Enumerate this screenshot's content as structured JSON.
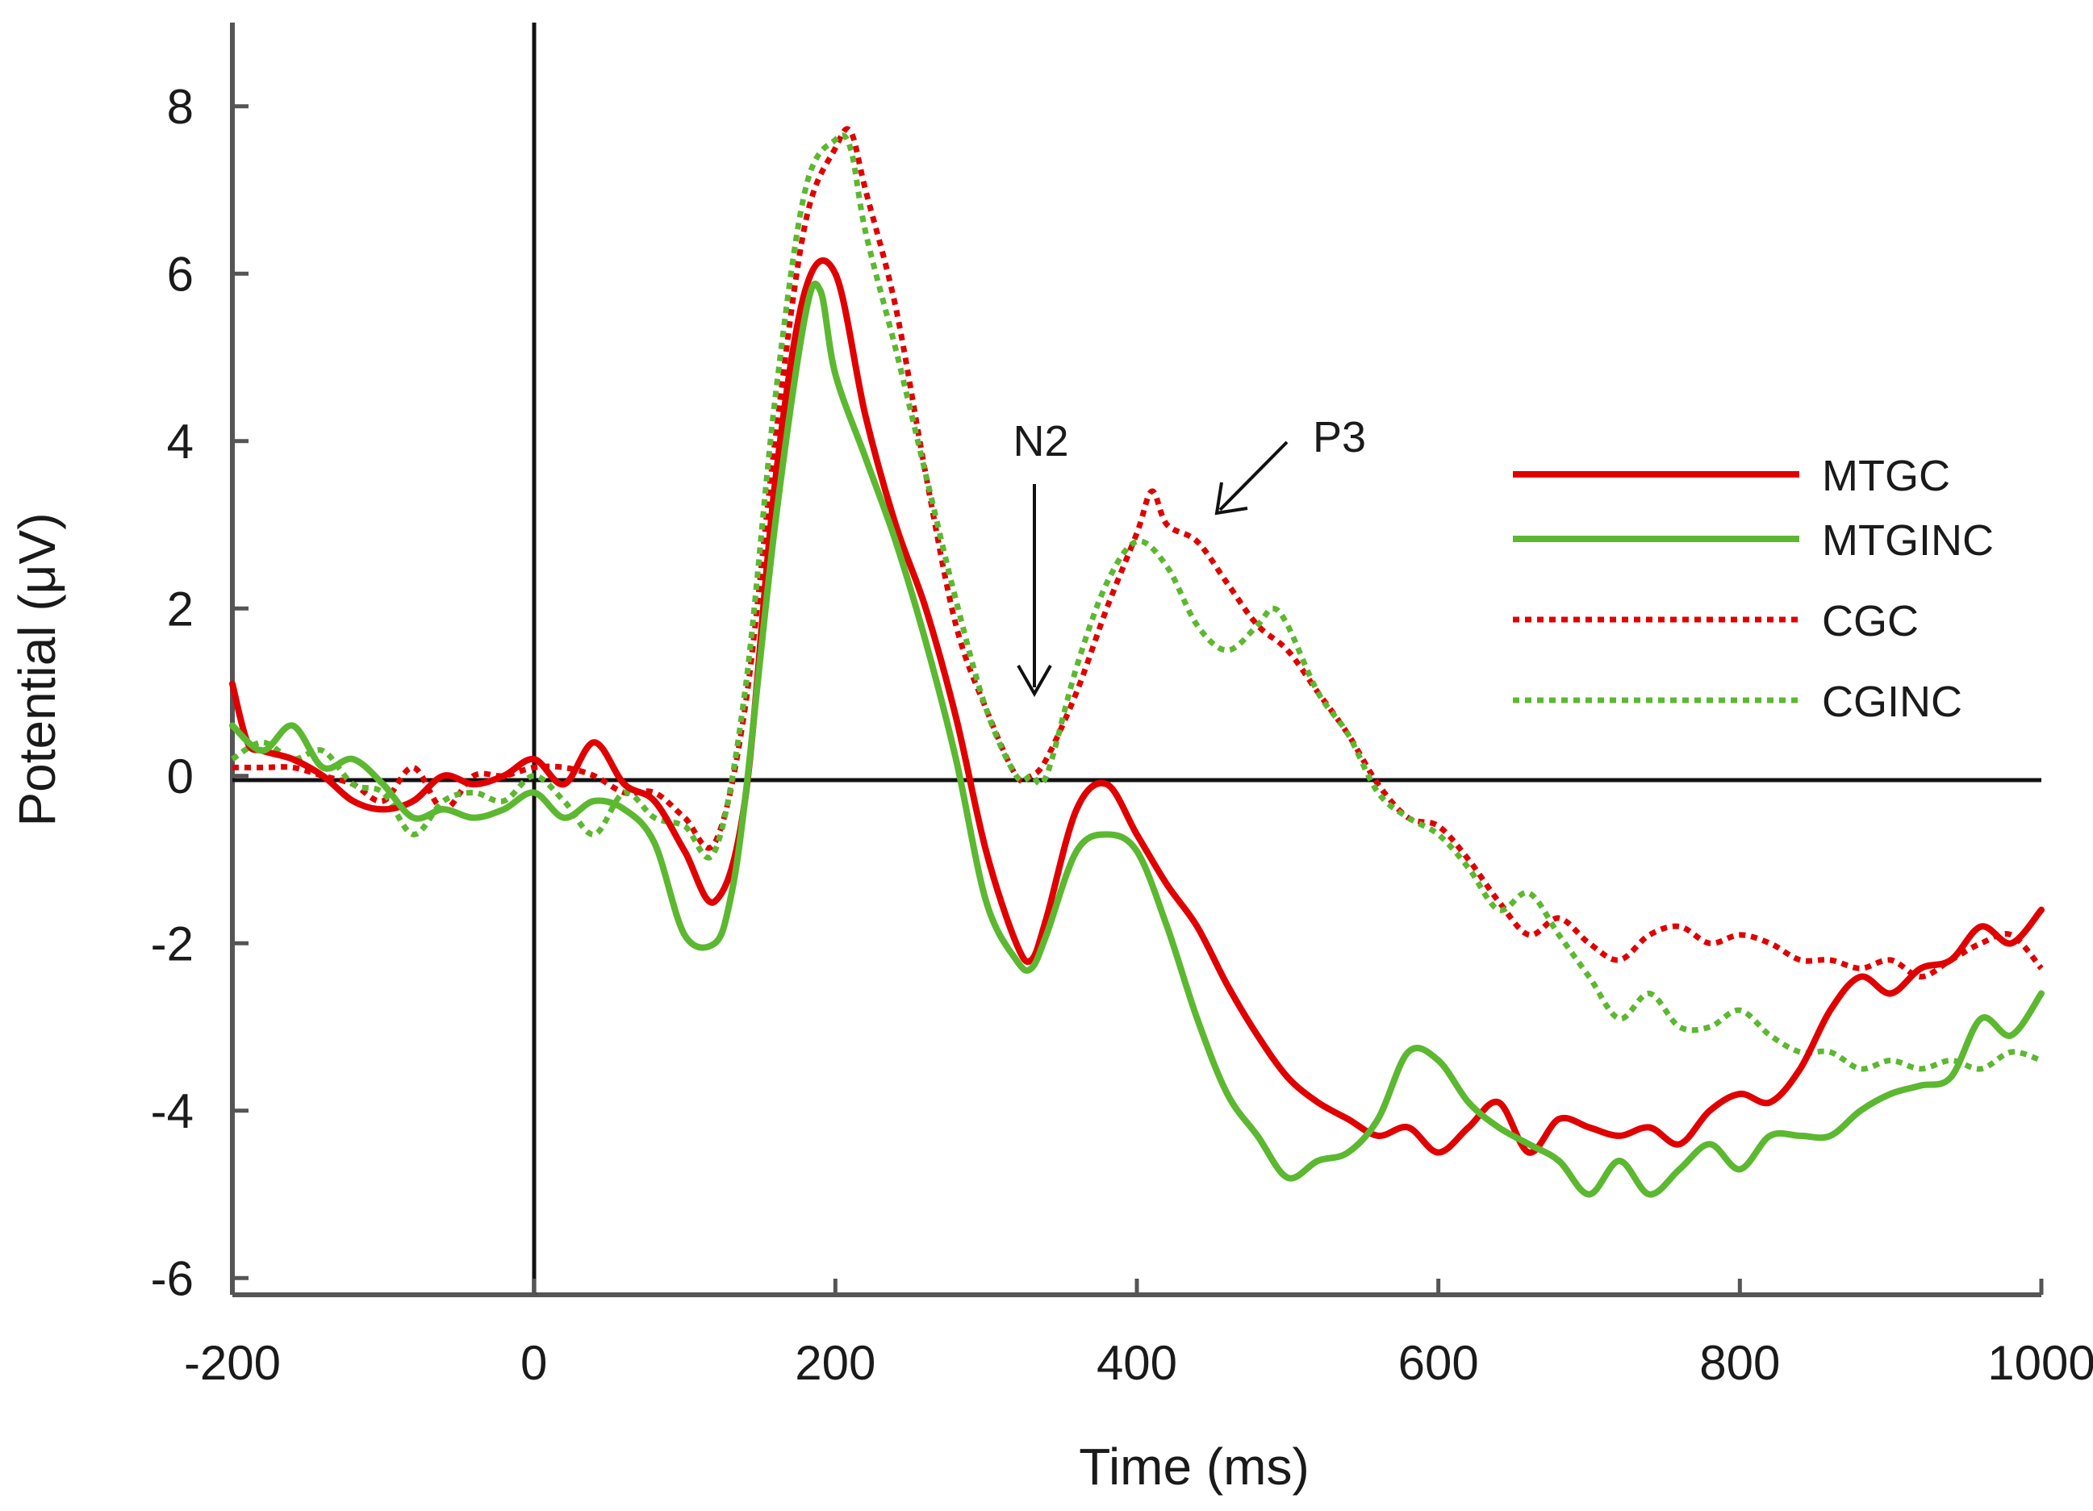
{
  "chart_data": {
    "type": "line",
    "title": "",
    "xlabel": "Time (ms)",
    "ylabel": "Potential (μV)",
    "xlim": [
      -200,
      1000
    ],
    "ylim": [
      -6.2,
      9
    ],
    "xticks": [
      -200,
      0,
      200,
      400,
      600,
      800,
      1000
    ],
    "yticks": [
      8,
      6,
      4,
      2,
      0,
      -2,
      -4,
      -6
    ],
    "xtick_labels": [
      "-200",
      "0",
      "200",
      "400",
      "600",
      "800",
      "1000"
    ],
    "ytick_labels": [
      "8",
      "6",
      "4",
      "2",
      "0",
      "-2",
      "-4",
      "-6"
    ],
    "legend_position": "right",
    "series": [
      {
        "name": "MTGC",
        "color": "#e00000",
        "style": "solid",
        "x": [
          -200,
          -190,
          -180,
          -160,
          -140,
          -120,
          -100,
          -80,
          -60,
          -40,
          -20,
          0,
          20,
          40,
          60,
          80,
          100,
          120,
          140,
          160,
          180,
          200,
          220,
          240,
          260,
          280,
          300,
          320,
          330,
          340,
          360,
          380,
          400,
          420,
          440,
          460,
          480,
          500,
          520,
          540,
          560,
          580,
          600,
          620,
          640,
          660,
          680,
          700,
          720,
          740,
          760,
          780,
          800,
          820,
          840,
          860,
          880,
          900,
          920,
          940,
          960,
          980,
          1000
        ],
        "y": [
          1.1,
          0.4,
          0.3,
          0.2,
          0.0,
          -0.3,
          -0.4,
          -0.3,
          0.0,
          -0.1,
          0.0,
          0.2,
          -0.1,
          0.4,
          -0.1,
          -0.3,
          -0.9,
          -1.5,
          -0.3,
          3.5,
          5.8,
          6.0,
          4.3,
          3.0,
          2.0,
          0.7,
          -0.9,
          -2.0,
          -2.2,
          -1.7,
          -0.4,
          -0.1,
          -0.7,
          -1.3,
          -1.8,
          -2.5,
          -3.1,
          -3.6,
          -3.9,
          -4.1,
          -4.3,
          -4.2,
          -4.5,
          -4.2,
          -3.9,
          -4.5,
          -4.1,
          -4.2,
          -4.3,
          -4.2,
          -4.4,
          -4.0,
          -3.8,
          -3.9,
          -3.5,
          -2.8,
          -2.4,
          -2.6,
          -2.3,
          -2.2,
          -1.8,
          -2.0,
          -1.6
        ]
      },
      {
        "name": "MTGINC",
        "color": "#5cb830",
        "style": "solid",
        "x": [
          -200,
          -180,
          -160,
          -140,
          -120,
          -100,
          -80,
          -60,
          -40,
          -20,
          0,
          20,
          40,
          60,
          80,
          100,
          120,
          130,
          140,
          160,
          180,
          190,
          200,
          220,
          240,
          260,
          280,
          300,
          320,
          330,
          340,
          360,
          380,
          400,
          420,
          440,
          460,
          480,
          500,
          520,
          540,
          560,
          580,
          600,
          620,
          640,
          660,
          680,
          700,
          720,
          740,
          760,
          780,
          800,
          820,
          840,
          860,
          880,
          900,
          920,
          940,
          960,
          980,
          1000
        ],
        "y": [
          0.6,
          0.3,
          0.6,
          0.1,
          0.2,
          -0.1,
          -0.5,
          -0.4,
          -0.5,
          -0.4,
          -0.2,
          -0.5,
          -0.3,
          -0.4,
          -0.8,
          -1.9,
          -2.0,
          -1.5,
          -0.3,
          3.0,
          5.5,
          5.8,
          4.8,
          3.8,
          2.8,
          1.6,
          0.2,
          -1.5,
          -2.2,
          -2.3,
          -1.9,
          -0.9,
          -0.7,
          -0.9,
          -1.8,
          -2.9,
          -3.8,
          -4.3,
          -4.8,
          -4.6,
          -4.5,
          -4.1,
          -3.3,
          -3.4,
          -3.9,
          -4.2,
          -4.4,
          -4.6,
          -5.0,
          -4.6,
          -5.0,
          -4.7,
          -4.4,
          -4.7,
          -4.3,
          -4.3,
          -4.3,
          -4.0,
          -3.8,
          -3.7,
          -3.6,
          -2.9,
          -3.1,
          -2.6
        ]
      },
      {
        "name": "CGC",
        "color": "#e00000",
        "style": "dotted",
        "x": [
          -200,
          -180,
          -160,
          -140,
          -120,
          -100,
          -80,
          -60,
          -40,
          -20,
          0,
          20,
          40,
          60,
          80,
          100,
          120,
          140,
          160,
          180,
          200,
          210,
          220,
          240,
          260,
          280,
          300,
          320,
          330,
          340,
          360,
          380,
          400,
          410,
          420,
          440,
          460,
          480,
          500,
          520,
          540,
          560,
          580,
          600,
          620,
          640,
          660,
          680,
          700,
          720,
          740,
          760,
          780,
          800,
          820,
          840,
          860,
          880,
          900,
          920,
          940,
          960,
          980,
          1000
        ],
        "y": [
          0.1,
          0.1,
          0.1,
          0.0,
          -0.1,
          -0.3,
          0.1,
          -0.4,
          0.0,
          0.0,
          0.1,
          0.1,
          0.0,
          -0.2,
          -0.2,
          -0.5,
          -0.8,
          0.8,
          4.0,
          6.6,
          7.5,
          7.7,
          7.0,
          5.6,
          3.6,
          1.8,
          0.8,
          0.0,
          0.0,
          0.2,
          1.0,
          2.0,
          2.9,
          3.4,
          3.0,
          2.8,
          2.3,
          1.8,
          1.5,
          1.0,
          0.5,
          -0.1,
          -0.5,
          -0.6,
          -1.0,
          -1.5,
          -1.9,
          -1.7,
          -2.0,
          -2.2,
          -1.9,
          -1.8,
          -2.0,
          -1.9,
          -2.0,
          -2.2,
          -2.2,
          -2.3,
          -2.2,
          -2.4,
          -2.2,
          -2.0,
          -1.9,
          -2.3
        ]
      },
      {
        "name": "CGINC",
        "color": "#5cb830",
        "style": "dotted",
        "x": [
          -200,
          -180,
          -160,
          -140,
          -120,
          -100,
          -80,
          -60,
          -40,
          -20,
          0,
          20,
          40,
          60,
          80,
          100,
          120,
          140,
          160,
          180,
          200,
          210,
          220,
          240,
          260,
          280,
          300,
          320,
          330,
          340,
          360,
          380,
          400,
          420,
          440,
          460,
          480,
          490,
          500,
          520,
          540,
          560,
          580,
          600,
          620,
          640,
          660,
          680,
          700,
          720,
          740,
          760,
          780,
          800,
          820,
          840,
          860,
          880,
          900,
          920,
          940,
          960,
          980,
          1000
        ],
        "y": [
          0.2,
          0.4,
          0.2,
          0.3,
          -0.1,
          -0.2,
          -0.7,
          -0.3,
          -0.2,
          -0.3,
          0.0,
          -0.3,
          -0.7,
          -0.2,
          -0.5,
          -0.6,
          -0.9,
          1.0,
          4.5,
          7.0,
          7.6,
          7.5,
          6.5,
          5.1,
          3.6,
          2.1,
          0.8,
          0.0,
          0.0,
          0.0,
          1.3,
          2.3,
          2.8,
          2.5,
          1.8,
          1.5,
          1.8,
          2.0,
          1.8,
          1.0,
          0.5,
          -0.2,
          -0.5,
          -0.7,
          -1.1,
          -1.6,
          -1.4,
          -1.9,
          -2.4,
          -2.9,
          -2.6,
          -3.0,
          -3.0,
          -2.8,
          -3.1,
          -3.3,
          -3.3,
          -3.5,
          -3.4,
          -3.5,
          -3.4,
          -3.5,
          -3.3,
          -3.4
        ]
      }
    ],
    "annotations": [
      {
        "text": "N2",
        "x": 325,
        "y": 0.9
      },
      {
        "text": "P3",
        "x": 450,
        "y": 3.2
      }
    ]
  }
}
